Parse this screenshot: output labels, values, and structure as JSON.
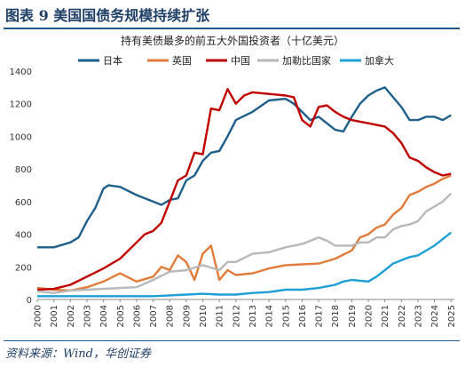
{
  "figure": {
    "label": "图表 9   美国国债务规模持续扩张",
    "source": "资料来源：Wind，华创证券"
  },
  "chart_data": {
    "type": "line",
    "title": "持有美债最多的前五大外国投资者（十亿美元）",
    "ylim": [
      0,
      1400
    ],
    "yticks": [
      0,
      200,
      400,
      600,
      800,
      1000,
      1200,
      1400
    ],
    "xlim": [
      2000,
      2025.2
    ],
    "xticks": [
      "2000",
      "2001",
      "2002",
      "2003",
      "2004",
      "2005",
      "2006",
      "2007",
      "2008",
      "2009",
      "2010",
      "2011",
      "2012",
      "2013",
      "2014",
      "2015",
      "2016",
      "2017",
      "2018",
      "2019",
      "2020",
      "2021",
      "2022",
      "2023",
      "2024",
      "2025"
    ],
    "legend_position": "top",
    "series": [
      {
        "name": "日本",
        "color": "#1f5f8b",
        "x": [
          2000,
          2001,
          2002,
          2002.5,
          2003,
          2003.5,
          2004,
          2004.3,
          2005,
          2006,
          2007,
          2007.5,
          2008,
          2008.5,
          2009,
          2009.5,
          2010,
          2010.5,
          2011,
          2011.5,
          2012,
          2013,
          2014,
          2015,
          2015.5,
          2016,
          2016.5,
          2017,
          2018,
          2018.5,
          2019,
          2019.5,
          2020,
          2020.5,
          2021,
          2021.5,
          2022,
          2022.5,
          2023,
          2023.5,
          2024,
          2024.5,
          2025
        ],
        "values": [
          320,
          320,
          350,
          380,
          480,
          560,
          680,
          700,
          690,
          640,
          600,
          580,
          610,
          620,
          730,
          760,
          850,
          900,
          910,
          1000,
          1100,
          1150,
          1220,
          1230,
          1200,
          1150,
          1100,
          1120,
          1040,
          1030,
          1120,
          1200,
          1250,
          1280,
          1300,
          1240,
          1180,
          1100,
          1100,
          1120,
          1120,
          1100,
          1130
        ]
      },
      {
        "name": "英国",
        "color": "#e07b39",
        "x": [
          2000,
          2001,
          2002,
          2003,
          2004,
          2005,
          2006,
          2007,
          2007.5,
          2008,
          2008.5,
          2009,
          2009.5,
          2010,
          2010.5,
          2011,
          2011.5,
          2012,
          2013,
          2014,
          2015,
          2016,
          2017,
          2018,
          2019,
          2019.5,
          2020,
          2020.5,
          2021,
          2021.5,
          2022,
          2022.5,
          2023,
          2023.5,
          2024,
          2024.5,
          2025
        ],
        "values": [
          70,
          60,
          55,
          75,
          110,
          160,
          110,
          140,
          200,
          180,
          270,
          230,
          120,
          280,
          330,
          120,
          180,
          150,
          160,
          190,
          210,
          215,
          220,
          250,
          300,
          380,
          400,
          440,
          460,
          520,
          560,
          640,
          660,
          690,
          710,
          740,
          760
        ]
      },
      {
        "name": "中国",
        "color": "#c00000",
        "x": [
          2000,
          2001,
          2002,
          2003,
          2004,
          2005,
          2006,
          2006.5,
          2007,
          2007.5,
          2008,
          2008.5,
          2009,
          2009.5,
          2010,
          2010.5,
          2011,
          2011.5,
          2012,
          2012.5,
          2013,
          2014,
          2015,
          2015.5,
          2016,
          2016.5,
          2017,
          2017.5,
          2018,
          2018.5,
          2019,
          2019.5,
          2020,
          2020.5,
          2021,
          2021.5,
          2022,
          2022.5,
          2023,
          2023.5,
          2024,
          2024.5,
          2025
        ],
        "values": [
          60,
          65,
          90,
          140,
          190,
          250,
          350,
          400,
          420,
          470,
          600,
          730,
          760,
          900,
          890,
          1170,
          1160,
          1290,
          1200,
          1250,
          1270,
          1260,
          1250,
          1240,
          1100,
          1060,
          1180,
          1190,
          1150,
          1120,
          1100,
          1090,
          1080,
          1070,
          1060,
          1020,
          960,
          870,
          850,
          810,
          780,
          760,
          770
        ]
      },
      {
        "name": "加勒比国家",
        "color": "#b8b8b8",
        "x": [
          2000,
          2001,
          2002,
          2003,
          2004,
          2005,
          2006,
          2007,
          2008,
          2009,
          2010,
          2011,
          2011.5,
          2012,
          2013,
          2014,
          2015,
          2015.5,
          2016,
          2017,
          2017.5,
          2018,
          2019,
          2019.5,
          2020,
          2020.5,
          2021,
          2021.5,
          2022,
          2022.5,
          2023,
          2023.5,
          2024,
          2024.5,
          2025
        ],
        "values": [
          50,
          40,
          55,
          60,
          65,
          70,
          75,
          120,
          170,
          180,
          210,
          180,
          230,
          230,
          280,
          290,
          320,
          330,
          340,
          380,
          360,
          330,
          330,
          350,
          350,
          380,
          380,
          430,
          450,
          460,
          480,
          540,
          570,
          600,
          650
        ]
      },
      {
        "name": "加拿大",
        "color": "#1f9fd6",
        "x": [
          2000,
          2001,
          2002,
          2003,
          2004,
          2005,
          2006,
          2007,
          2008,
          2009,
          2010,
          2011,
          2012,
          2013,
          2014,
          2015,
          2016,
          2017,
          2018,
          2018.5,
          2019,
          2020,
          2020.5,
          2021,
          2021.5,
          2022,
          2022.5,
          2023,
          2023.5,
          2024,
          2024.5,
          2025
        ],
        "values": [
          20,
          20,
          20,
          20,
          20,
          20,
          20,
          20,
          25,
          30,
          35,
          30,
          30,
          40,
          45,
          60,
          60,
          70,
          90,
          110,
          120,
          110,
          140,
          180,
          220,
          240,
          260,
          270,
          300,
          330,
          370,
          410
        ]
      }
    ]
  }
}
